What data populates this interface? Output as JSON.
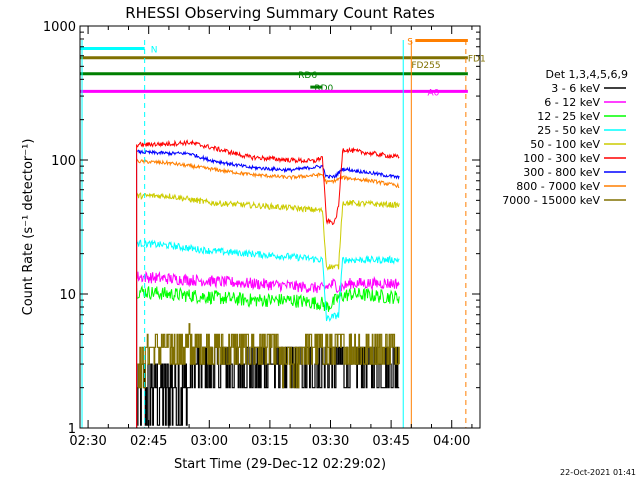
{
  "chart_data": {
    "type": "line",
    "title": "RHESSI Observing Summary Count Rates",
    "xlabel": "Start Time (29-Dec-12 02:29:02)",
    "ylabel": "Count Rate (s⁻¹ detector⁻¹)",
    "yscale": "log",
    "ylim": [
      1,
      1000
    ],
    "y_ticks": [
      {
        "value": 1,
        "label": "1"
      },
      {
        "value": 10,
        "label": "10"
      },
      {
        "value": 100,
        "label": "100"
      },
      {
        "value": 1000,
        "label": "1000"
      }
    ],
    "xlim_minutes": [
      -2,
      97
    ],
    "x_ticks": [
      {
        "minute": 0,
        "label": "02:30"
      },
      {
        "minute": 15,
        "label": "02:45"
      },
      {
        "minute": 30,
        "label": "03:00"
      },
      {
        "minute": 45,
        "label": "03:15"
      },
      {
        "minute": 60,
        "label": "03:30"
      },
      {
        "minute": 75,
        "label": "03:45"
      },
      {
        "minute": 90,
        "label": "04:00"
      }
    ],
    "legend_title": "Det 1,3,4,5,6,9",
    "legend_position": "right",
    "series": [
      {
        "name": "3 - 6 keV",
        "color": "#000000",
        "noise": 0.5,
        "step": 1,
        "points": [
          [
            12,
            2.5
          ],
          [
            20,
            2.4
          ],
          [
            30,
            2.6
          ],
          [
            40,
            2.5
          ],
          [
            50,
            3
          ],
          [
            58,
            3.2
          ],
          [
            61,
            3
          ],
          [
            65,
            3.5
          ],
          [
            75,
            3.2
          ],
          [
            77,
            3
          ]
        ]
      },
      {
        "name": "6 - 12 keV",
        "color": "#ff00ff",
        "noise": 0.1,
        "step": 0,
        "points": [
          [
            12,
            13.5
          ],
          [
            20,
            13
          ],
          [
            30,
            12.5
          ],
          [
            40,
            12
          ],
          [
            50,
            11.5
          ],
          [
            58,
            11
          ],
          [
            61,
            12
          ],
          [
            62,
            11
          ],
          [
            65,
            12
          ],
          [
            75,
            12
          ],
          [
            77,
            12
          ]
        ]
      },
      {
        "name": "12 - 25 keV",
        "color": "#00ff00",
        "noise": 0.12,
        "step": 0,
        "points": [
          [
            12,
            10.5
          ],
          [
            20,
            10
          ],
          [
            30,
            9.5
          ],
          [
            40,
            9
          ],
          [
            50,
            9
          ],
          [
            58,
            8.5
          ],
          [
            59,
            8
          ],
          [
            60.5,
            8.5
          ],
          [
            62,
            9.5
          ],
          [
            65,
            10
          ],
          [
            75,
            9.5
          ],
          [
            77,
            9.5
          ]
        ]
      },
      {
        "name": "25 - 50 keV",
        "color": "#00ffff",
        "noise": 0.06,
        "step": 0,
        "points": [
          [
            12,
            24
          ],
          [
            20,
            23
          ],
          [
            30,
            21
          ],
          [
            40,
            20
          ],
          [
            50,
            19
          ],
          [
            58,
            18
          ],
          [
            59,
            6.5
          ],
          [
            62,
            7
          ],
          [
            63,
            18
          ],
          [
            70,
            18
          ],
          [
            77,
            18
          ]
        ]
      },
      {
        "name": "50 - 100 keV",
        "color": "#cccc00",
        "noise": 0.05,
        "step": 0,
        "points": [
          [
            12,
            54
          ],
          [
            20,
            54
          ],
          [
            30,
            48
          ],
          [
            40,
            46
          ],
          [
            50,
            44
          ],
          [
            58,
            42
          ],
          [
            59,
            16
          ],
          [
            62,
            16
          ],
          [
            63,
            48
          ],
          [
            70,
            47
          ],
          [
            77,
            46
          ]
        ]
      },
      {
        "name": "100 - 300 keV",
        "color": "#ff0000",
        "noise": 0.04,
        "step": 0,
        "points": [
          [
            12,
            130
          ],
          [
            20,
            132
          ],
          [
            25,
            135
          ],
          [
            30,
            125
          ],
          [
            40,
            105
          ],
          [
            50,
            100
          ],
          [
            56,
            98
          ],
          [
            58,
            105
          ],
          [
            59,
            35
          ],
          [
            61,
            34
          ],
          [
            62,
            45
          ],
          [
            63,
            120
          ],
          [
            70,
            112
          ],
          [
            77,
            105
          ]
        ]
      },
      {
        "name": "300 - 800 keV",
        "color": "#0000ff",
        "noise": 0.03,
        "step": 0,
        "points": [
          [
            12,
            115
          ],
          [
            20,
            112
          ],
          [
            25,
            112
          ],
          [
            30,
            100
          ],
          [
            40,
            88
          ],
          [
            50,
            84
          ],
          [
            58,
            90
          ],
          [
            59,
            75
          ],
          [
            61,
            75
          ],
          [
            63,
            86
          ],
          [
            70,
            80
          ],
          [
            77,
            74
          ]
        ]
      },
      {
        "name": "800 - 7000 keV",
        "color": "#ff7f00",
        "noise": 0.03,
        "step": 0,
        "points": [
          [
            12,
            98
          ],
          [
            20,
            95
          ],
          [
            30,
            86
          ],
          [
            40,
            78
          ],
          [
            50,
            74
          ],
          [
            58,
            78
          ],
          [
            59,
            68
          ],
          [
            61,
            70
          ],
          [
            63,
            74
          ],
          [
            70,
            70
          ],
          [
            77,
            64
          ]
        ]
      },
      {
        "name": "7000 - 15000 keV",
        "color": "#807000",
        "noise": 0.4,
        "step": 1,
        "points": [
          [
            12,
            3.2
          ],
          [
            20,
            4.3
          ],
          [
            25,
            4.5
          ],
          [
            30,
            3.6
          ],
          [
            40,
            3.8
          ],
          [
            50,
            3.4
          ],
          [
            58,
            3.8
          ],
          [
            62,
            3.6
          ],
          [
            70,
            3.8
          ],
          [
            77,
            3.6
          ]
        ]
      }
    ],
    "flag_bars": [
      {
        "label": "N",
        "color": "#00ffff",
        "start": -2,
        "end": 14,
        "value": 680,
        "label_at": 15.5
      },
      {
        "label": "S",
        "color": "#ff7f00",
        "start": 81,
        "end": 94,
        "value": 780,
        "label_at": 79
      },
      {
        "label": "FD1",
        "color": "#807000",
        "start": -2,
        "end": 94,
        "value": 580,
        "label_at": 94
      },
      {
        "label": "FD255",
        "color": "#807000",
        "start": 79,
        "end": 79,
        "value": 520,
        "label_at": 80
      },
      {
        "label": "RD6",
        "color": "#007f00",
        "start": -2,
        "end": 94,
        "value": 440,
        "label_at": 52
      },
      {
        "label": "RD0",
        "color": "#007f00",
        "start": 55,
        "end": 58,
        "value": 350,
        "label_at": 56
      },
      {
        "label": "A0",
        "color": "#ff00ff",
        "start": -2,
        "end": 94,
        "value": 325,
        "label_at": 84
      }
    ],
    "vertical_lines": [
      {
        "minute": -1.5,
        "color": "#00ffff",
        "style": "solid"
      },
      {
        "minute": 14,
        "color": "#00ffff",
        "style": "dashed"
      },
      {
        "minute": 78,
        "color": "#00ffff",
        "style": "solid"
      },
      {
        "minute": 80,
        "color": "#ff7f00",
        "style": "solid"
      },
      {
        "minute": 93.5,
        "color": "#ff7f00",
        "style": "dashed"
      }
    ],
    "footer_stamp": "22-Oct-2021 01:41"
  }
}
